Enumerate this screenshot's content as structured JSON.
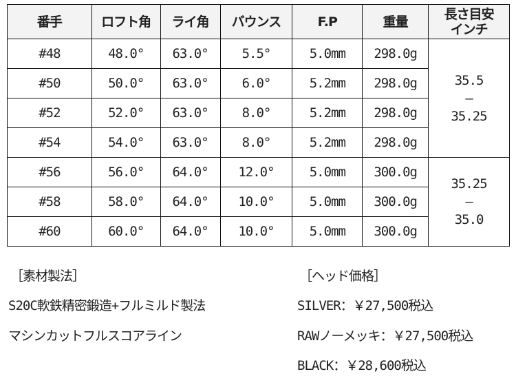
{
  "table": {
    "headers": [
      "番手",
      "ロフト角",
      "ライ角",
      "バウンス",
      "F.P",
      "重量",
      "長さ目安",
      "インチ"
    ],
    "rows": [
      [
        "#48",
        "48.0°",
        "63.0°",
        "5.5°",
        "5.0mm",
        "298.0g"
      ],
      [
        "#50",
        "50.0°",
        "63.0°",
        "6.0°",
        "5.2mm",
        "298.0g"
      ],
      [
        "#52",
        "52.0°",
        "63.0°",
        "8.0°",
        "5.2mm",
        "298.0g"
      ],
      [
        "#54",
        "54.0°",
        "63.0°",
        "8.0°",
        "5.2mm",
        "298.0g"
      ],
      [
        "#56",
        "56.0°",
        "64.0°",
        "12.0°",
        "5.0mm",
        "300.0g"
      ],
      [
        "#58",
        "58.0°",
        "64.0°",
        "10.0°",
        "5.0mm",
        "300.0g"
      ],
      [
        "#60",
        "60.0°",
        "64.0°",
        "10.0°",
        "5.0mm",
        "300.0g"
      ]
    ],
    "length_groups": [
      {
        "from": "35.5",
        "dash": "–",
        "to": "35.25"
      },
      {
        "from": "35.25",
        "dash": "–",
        "to": "35.0"
      }
    ]
  },
  "material": {
    "heading": "［素材製法］",
    "lines": [
      "S20C軟鉄精密鍛造+フルミルド製法",
      "マシンカットフルスコアライン"
    ]
  },
  "price": {
    "heading": "［ヘッド価格］",
    "lines": [
      "SILVER：￥27,500税込",
      "RAWノーメッキ：￥27,500税込",
      "BLACK：￥28,600税込"
    ]
  }
}
